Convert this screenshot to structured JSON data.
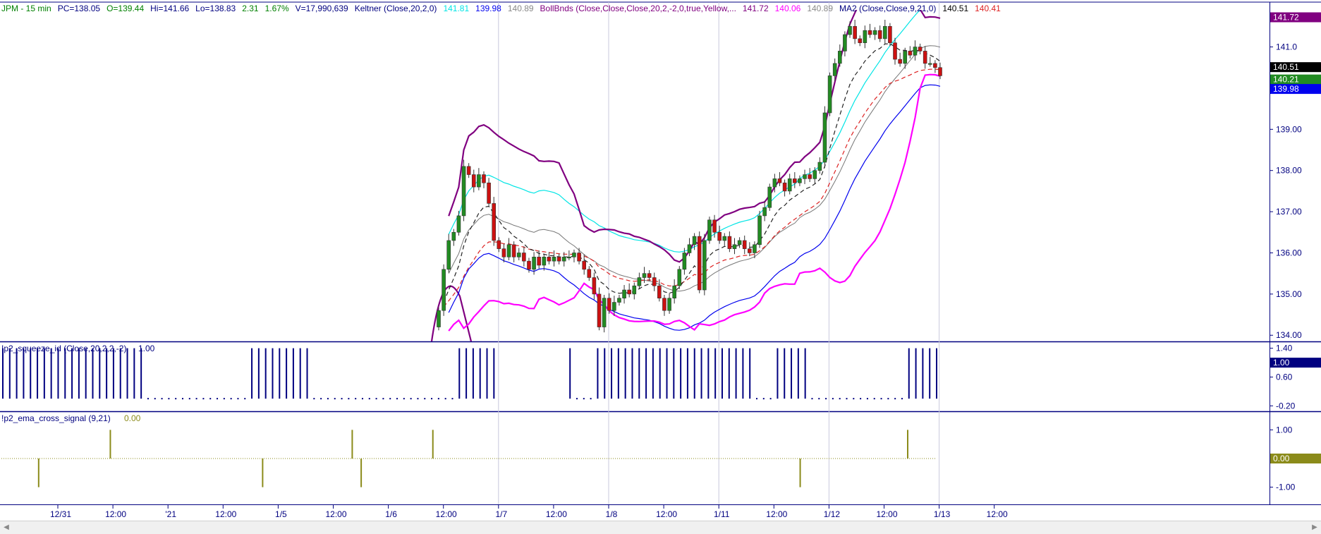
{
  "chart_data": [
    {
      "type": "candlestick",
      "header": {
        "symbol": "JPM - 15 min",
        "pc": "PC=138.05",
        "open": "O=139.44",
        "hi": "Hi=141.66",
        "lo": "Lo=138.83",
        "chg": "2.31",
        "pct": "1.67%",
        "vol": "V=17,990,639",
        "keltner_label": "Keltner (Close,20,2,0)",
        "keltner_up": "141.81",
        "keltner_lo": "139.98",
        "keltner_mid": "140.89",
        "boll_label": "BollBnds (Close,Close,Close,20,2,-2,0,true,Yellow,...",
        "boll_up": "141.72",
        "boll_lo": "140.06",
        "boll_mid": "140.89",
        "ma_label": "MA2 (Close,Close,9,21,0)",
        "ma_fast": "140.51",
        "ma_slow": "140.41"
      },
      "y_ticks": [
        "141.0",
        "140.0",
        "139.00",
        "138.00",
        "137.00",
        "136.00",
        "135.00",
        "134.00"
      ],
      "y_tick_values": [
        141,
        140,
        139,
        138,
        137,
        136,
        135,
        134
      ],
      "ylim": [
        133.85,
        141.9
      ],
      "price_tags": [
        {
          "text": "141.72",
          "value": 141.72,
          "bg": "#800080",
          "fg": "#ffffff"
        },
        {
          "text": "140.51",
          "value": 140.51,
          "bg": "#000000",
          "fg": "#ffffff"
        },
        {
          "text": "140.41",
          "value": 140.41,
          "bg": "#cc2222",
          "fg": "#ffffff"
        },
        {
          "text": "140.21",
          "value": 140.21,
          "bg": "#228b22",
          "fg": "#ffffff"
        },
        {
          "text": "139.98",
          "value": 139.98,
          "bg": "#0000ee",
          "fg": "#ffffff"
        }
      ],
      "closes": [
        134.6,
        135.6,
        136.3,
        136.5,
        136.9,
        138.1,
        137.9,
        137.6,
        137.9,
        137.7,
        137.2,
        136.3,
        136.1,
        135.9,
        136.2,
        135.9,
        136.0,
        135.8,
        135.6,
        135.9,
        135.7,
        135.9,
        135.8,
        135.9,
        135.8,
        135.9,
        135.9,
        136.0,
        135.8,
        135.6,
        135.4,
        135.0,
        134.2,
        134.9,
        134.6,
        134.8,
        134.9,
        135.1,
        135.0,
        135.2,
        135.4,
        135.5,
        135.4,
        135.2,
        134.9,
        134.6,
        134.9,
        135.2,
        135.6,
        136.0,
        136.2,
        136.4,
        135.1,
        136.3,
        136.8,
        136.5,
        136.3,
        136.4,
        136.1,
        136.2,
        136.3,
        136.1,
        136.0,
        136.2,
        136.9,
        137.1,
        137.6,
        137.8,
        137.7,
        137.5,
        137.8,
        137.7,
        137.8,
        137.9,
        137.8,
        138.0,
        138.2,
        139.4,
        140.3,
        140.6,
        140.9,
        141.3,
        141.5,
        141.2,
        141.1,
        141.4,
        141.3,
        141.4,
        141.2,
        141.5,
        141.1,
        140.7,
        140.6,
        140.9,
        140.8,
        141.0,
        140.9,
        140.6,
        140.6,
        140.5,
        140.3
      ]
    },
    {
      "type": "bar",
      "label": "!p2_squeeze_id (Close,20,2,2,-2)",
      "last": "1.00",
      "y_ticks": [
        "1.40",
        "1.00",
        "0.60",
        "-0.20"
      ],
      "y_tick_values": [
        1.4,
        1.0,
        0.6,
        -0.2
      ],
      "ylim": [
        -0.35,
        1.55
      ],
      "tag": {
        "text": "1.00",
        "bg": "#000080",
        "fg": "#ffffff"
      },
      "on_ranges": [
        [
          0,
          20
        ],
        [
          36,
          44
        ],
        [
          66,
          67
        ],
        [
          68,
          71
        ],
        [
          82,
          82
        ],
        [
          86,
          108
        ],
        [
          112,
          116
        ],
        [
          131,
          135
        ]
      ],
      "off_ranges": [
        [
          21,
          35
        ],
        [
          45,
          65
        ],
        [
          83,
          85
        ],
        [
          109,
          111
        ],
        [
          117,
          130
        ]
      ]
    },
    {
      "type": "bar",
      "label": "!p2_ema_cross_signal (9,21)",
      "last": "0.00",
      "y_ticks": [
        "1.00",
        "0.00",
        "-1.00"
      ],
      "y_tick_values": [
        1,
        0,
        -1
      ],
      "ylim": [
        -1.6,
        1.6
      ],
      "tag": {
        "text": "0.00",
        "bg": "#8b8b1a",
        "fg": "#ffffff"
      },
      "signals": [
        {
          "bar": 4,
          "value": -1
        },
        {
          "bar": 12,
          "value": 1
        },
        {
          "bar": 29,
          "value": -1
        },
        {
          "bar": 39,
          "value": 1
        },
        {
          "bar": 40,
          "value": -1
        },
        {
          "bar": 48,
          "value": 1
        },
        {
          "bar": 89,
          "value": -1
        },
        {
          "bar": 101,
          "value": 1
        }
      ]
    }
  ],
  "x_axis": {
    "labels": [
      "12/31",
      "12:00",
      "'21",
      "12:00",
      "1/5",
      "12:00",
      "1/6",
      "12:00",
      "1/7",
      "12:00",
      "1/8",
      "12:00",
      "1/11",
      "12:00",
      "1/12",
      "12:00",
      "1/13",
      "12:00"
    ]
  },
  "colors": {
    "axis_text": "#000080",
    "header_green": "#008000",
    "keltner_cyan": "#00e5e5",
    "keltner_blue": "#0000ee",
    "boll_purple": "#800080",
    "boll_magenta": "#ff00ff",
    "ma_red": "#dd2222",
    "ma_black": "#222222",
    "up_candle": "#228b22",
    "down_candle": "#cc1111"
  }
}
